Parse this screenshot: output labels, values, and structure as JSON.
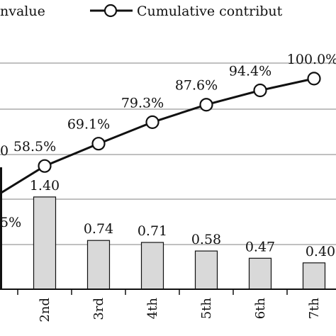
{
  "chart_data": {
    "type": "bar",
    "categories": [
      "2nd",
      "3rd",
      "4th",
      "5th",
      "6th",
      "7th"
    ],
    "series": [
      {
        "name": "nvalue",
        "type": "bar",
        "axis": "left",
        "values": [
          1.4,
          0.74,
          0.71,
          0.58,
          0.47,
          0.4
        ],
        "labels": [
          "1.40",
          "0.74",
          "0.71",
          "0.58",
          "0.47",
          "0.40"
        ]
      },
      {
        "name": "Cumulative contribut",
        "type": "line",
        "axis": "right",
        "values": [
          58.5,
          69.1,
          79.3,
          87.6,
          94.4,
          100.0
        ],
        "labels": [
          "58.5%",
          "69.1%",
          "79.3%",
          "87.6%",
          "94.4%",
          "100.0%"
        ]
      }
    ],
    "partial_labels": {
      "left_edge_value": "0",
      "left_edge_percent": "5%"
    },
    "axes": {
      "bar_ylim": [
        0,
        4.12
      ],
      "line_ylim": [
        0,
        128.9
      ]
    },
    "grid": true,
    "legend": "top",
    "colors": {
      "bar_fill": "#d9d9d9",
      "bar_stroke": "#111111",
      "line": "#111111",
      "marker_fill": "#ffffff",
      "grid": "#9a9a9a"
    }
  }
}
